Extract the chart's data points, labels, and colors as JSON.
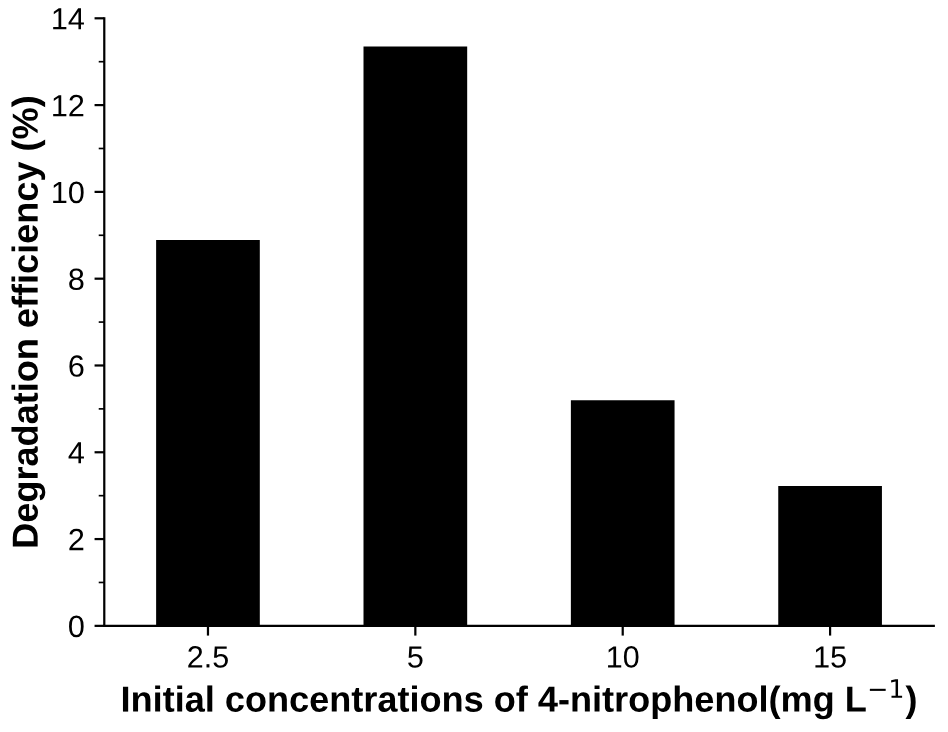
{
  "chart_data": {
    "type": "bar",
    "xlabel": "Initial concentrations of 4-nitrophenol(mg L$^{−1}$)",
    "ylabel": "Degradation efficiency (%)",
    "categories": [
      "2.5",
      "5",
      "10",
      "15"
    ],
    "values": [
      8.89,
      13.35,
      5.2,
      3.22
    ],
    "color": "#000000",
    "ylim": [
      0,
      14
    ],
    "yticks": [
      0,
      2,
      4,
      6,
      8,
      10,
      12,
      14
    ],
    "grid": false
  }
}
